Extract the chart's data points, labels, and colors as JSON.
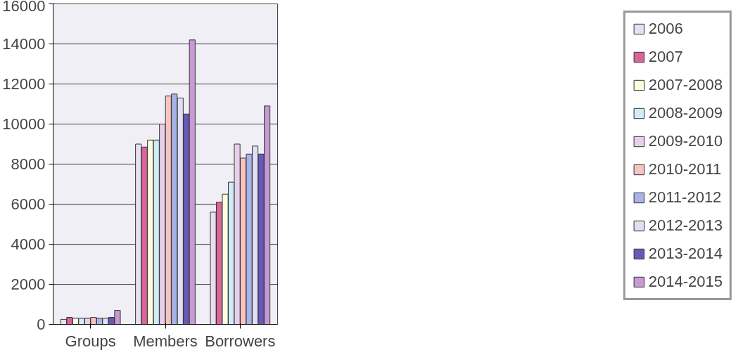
{
  "chart_data": {
    "type": "bar",
    "categories": [
      "Groups",
      "Members",
      "Borrowers"
    ],
    "series": [
      {
        "name": "2006",
        "color": "#e6e0f0",
        "values": [
          250,
          9000,
          5600
        ]
      },
      {
        "name": "2007",
        "color": "#d9669a",
        "values": [
          350,
          8850,
          6100
        ]
      },
      {
        "name": "2007-2008",
        "color": "#fffde0",
        "values": [
          300,
          9200,
          6500
        ]
      },
      {
        "name": "2008-2009",
        "color": "#d0ecf8",
        "values": [
          300,
          9200,
          7100
        ]
      },
      {
        "name": "2009-2010",
        "color": "#e8d0ec",
        "values": [
          300,
          10000,
          9000
        ]
      },
      {
        "name": "2010-2011",
        "color": "#f8c4c0",
        "values": [
          350,
          11400,
          8300
        ]
      },
      {
        "name": "2011-2012",
        "color": "#a8b4e8",
        "values": [
          300,
          11500,
          8500
        ]
      },
      {
        "name": "2012-2013",
        "color": "#e0e0f4",
        "values": [
          300,
          11300,
          8900
        ]
      },
      {
        "name": "2013-2014",
        "color": "#6a58b8",
        "values": [
          350,
          10500,
          8500
        ]
      },
      {
        "name": "2014-2015",
        "color": "#c89ad4",
        "values": [
          700,
          14200,
          10900
        ]
      }
    ],
    "ylim": [
      0,
      16000
    ],
    "yticks": [
      0,
      2000,
      4000,
      6000,
      8000,
      10000,
      12000,
      14000,
      16000
    ],
    "grid": "y",
    "legend": "right"
  }
}
